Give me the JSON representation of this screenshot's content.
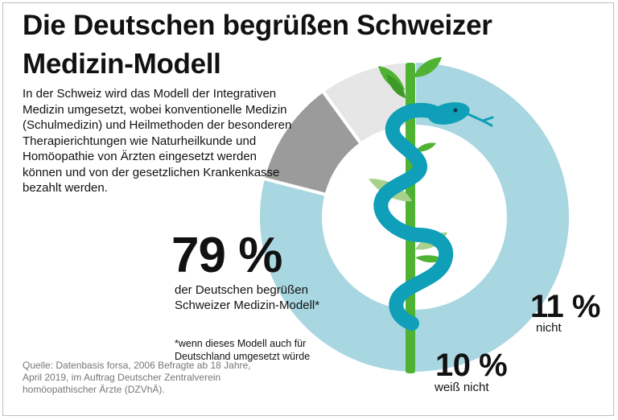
{
  "title": "Die Deutschen begrüßen Schweizer Medizin-Modell",
  "intro": "In der Schweiz wird das Modell der Integrativen Medizin umgesetzt, wobei konventionelle Medizin (Schulmedizin) und Heilmethoden der besonderen Therapierichtungen wie Naturheilkunde und Homöopathie von Ärzten eingesetzt werden können und von der gesetzlichen Krankenkasse bezahlt werden.",
  "source": "Quelle: Datenbasis forsa, 2006 Befragte ab 18 Jahre, April 2019, im Auftrag Deutscher Zentralverein homöopathischer Ärzte (DZVhÄ).",
  "illustration": "aesculapian-staff-icon",
  "chart_data": {
    "type": "pie",
    "title": "Die Deutschen begrüßen Schweizer Medizin-Modell",
    "style": "donut",
    "slices": [
      {
        "value": 79,
        "display": "79 %",
        "label": "der Deutschen begrüßen Schweizer Medizin-Modell*",
        "color": "#a8d6e1"
      },
      {
        "value": 11,
        "display": "11 %",
        "label": "nicht",
        "color": "#9b9b9b"
      },
      {
        "value": 10,
        "display": "10 %",
        "label": "weiß nicht",
        "color": "#e6e6e6"
      }
    ],
    "footnote": "*wenn dieses Modell auch für Deutschland umgesetzt würde"
  }
}
